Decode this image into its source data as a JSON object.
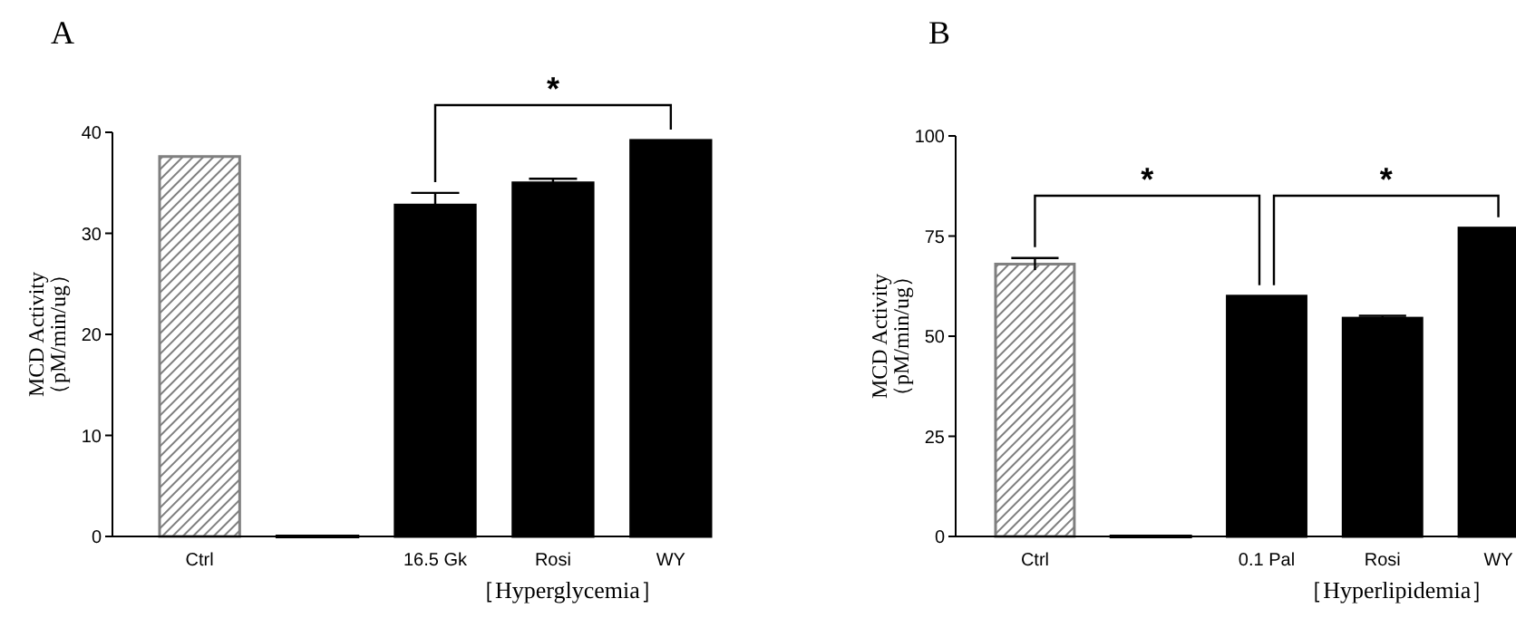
{
  "chart_data": [
    {
      "type": "bar",
      "title": "A",
      "ylabel": "MCD Activity\n（pM/min/ug）",
      "xlabel": "［Hyperglycemia］",
      "categories": [
        "Ctrl",
        null,
        "16.5 Gk",
        "Rosi",
        "WY"
      ],
      "values": [
        37.6,
        0,
        32.8,
        35,
        39.2
      ],
      "errors": [
        null,
        null,
        1.2,
        0.4,
        null
      ],
      "colors": [
        "#7f7f7f",
        "#000000",
        "#000000",
        "#000000",
        "#000000"
      ],
      "ylim": [
        0,
        40
      ],
      "yticks": [
        0,
        10,
        20,
        30,
        40
      ],
      "grid": false,
      "annotations": [
        "*"
      ]
    },
    {
      "type": "bar",
      "title": "B",
      "ylabel": "MCD Activity\n（pM/min/ug）",
      "xlabel": "［Hyperlipidemia］",
      "categories": [
        "Ctrl",
        null,
        "0.1 Pal",
        "Rosi",
        "WY"
      ],
      "values": [
        68,
        0,
        60,
        54.5,
        77
      ],
      "errors": [
        1.5,
        null,
        null,
        0.6,
        null
      ],
      "colors": [
        "#7f7f7f",
        "#000000",
        "#000000",
        "#000000",
        "#000000"
      ],
      "ylim": [
        0,
        100
      ],
      "yticks": [
        0,
        25,
        50,
        75,
        100
      ],
      "grid": false,
      "annotations": [
        "*",
        "*"
      ]
    }
  ]
}
